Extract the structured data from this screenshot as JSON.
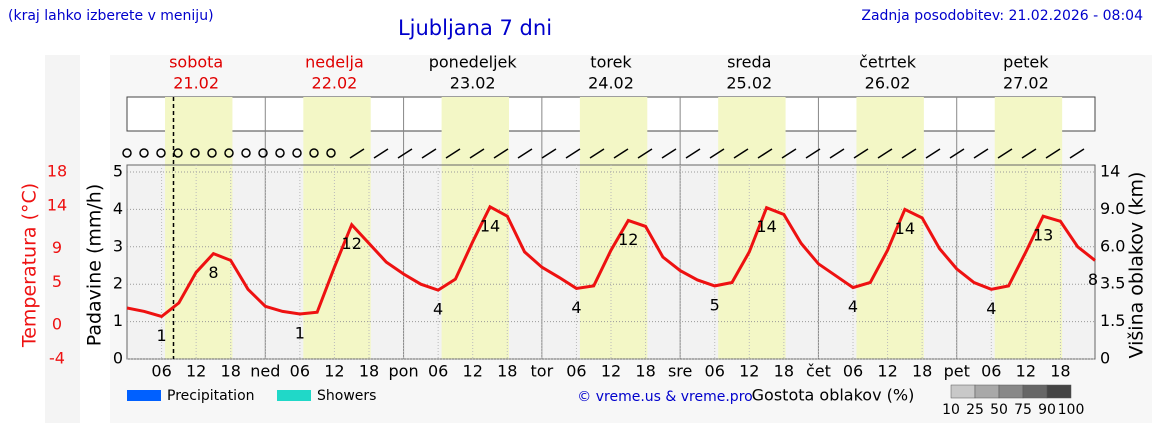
{
  "header": {
    "left": "(kraj lahko izberete v meniju)",
    "title": "Ljubljana 7 dni",
    "right": "Zadnja posodobitev: 21.02.2026 - 08:04"
  },
  "chart_data": {
    "type": "line",
    "days": [
      {
        "name": "sobota",
        "date": "21.02",
        "color": "#e00000"
      },
      {
        "name": "nedelja",
        "date": "22.02",
        "color": "#e00000"
      },
      {
        "name": "ponedeljek",
        "date": "23.02",
        "color": "#000000"
      },
      {
        "name": "torek",
        "date": "24.02",
        "color": "#000000"
      },
      {
        "name": "sreda",
        "date": "25.02",
        "color": "#000000"
      },
      {
        "name": "četrtek",
        "date": "26.02",
        "color": "#000000"
      },
      {
        "name": "petek",
        "date": "27.02",
        "color": "#000000"
      }
    ],
    "xlim": [
      0,
      168
    ],
    "xticks": [
      {
        "value": 6,
        "label": "06"
      },
      12,
      18,
      {
        "value": 24,
        "label": "ned"
      },
      {
        "value": 30,
        "label": "06"
      },
      {
        "value": 36,
        "label": "12"
      },
      {
        "value": 42,
        "label": "18"
      },
      {
        "value": 48,
        "label": "pon"
      },
      {
        "value": 54,
        "label": "06"
      },
      {
        "value": 60,
        "label": "12"
      },
      {
        "value": 66,
        "label": "18"
      },
      {
        "value": 72,
        "label": "tor"
      },
      {
        "value": 78,
        "label": "06"
      },
      {
        "value": 84,
        "label": "12"
      },
      {
        "value": 90,
        "label": "18"
      },
      {
        "value": 96,
        "label": "sre"
      },
      {
        "value": 102,
        "label": "06"
      },
      {
        "value": 108,
        "label": "12"
      },
      {
        "value": 114,
        "label": "18"
      },
      {
        "value": 120,
        "label": "čet"
      },
      {
        "value": 126,
        "label": "06"
      },
      {
        "value": 132,
        "label": "12"
      },
      {
        "value": 138,
        "label": "18"
      },
      {
        "value": 144,
        "label": "pet"
      },
      {
        "value": 150,
        "label": "06"
      },
      {
        "value": 156,
        "label": "12"
      },
      {
        "value": 162,
        "label": "18"
      }
    ],
    "daylight": [
      6.6,
      18.3
    ],
    "now": 8.07,
    "ylabel": "Padavine (mm/h)",
    "ylim": [
      0,
      5
    ],
    "yticks": [
      0,
      1,
      2,
      3,
      4,
      5
    ],
    "grid": true,
    "temperature_label": "Temperatura (°C)",
    "tlim": [
      -4,
      18
    ],
    "tticks": [
      -4,
      0,
      5,
      9,
      14,
      18
    ],
    "y2label": "Višina oblakov (km)",
    "y2ticks": [
      0,
      1.5,
      3.5,
      {
        "value": 6,
        "label": "6.0"
      },
      {
        "value": 9,
        "label": "9.0"
      },
      14
    ],
    "series": [
      {
        "name": "Temperatura",
        "color": "#ee1111",
        "x": [
          0,
          3,
          6,
          9,
          12,
          15,
          18,
          21,
          24,
          27,
          30,
          33,
          36,
          39,
          42,
          45,
          48,
          51,
          54,
          57,
          60,
          63,
          66,
          69,
          72,
          75,
          78,
          81,
          84,
          87,
          90,
          93,
          96,
          99,
          102,
          105,
          108,
          111,
          114,
          117,
          120,
          123,
          126,
          129,
          132,
          135,
          138,
          141,
          144,
          147,
          150,
          153,
          156,
          159,
          162,
          165,
          168
        ],
        "values": [
          2.0,
          1.6,
          1.0,
          2.6,
          6.2,
          8.4,
          7.6,
          4.2,
          2.2,
          1.6,
          1.3,
          1.5,
          6.8,
          11.8,
          9.6,
          7.4,
          6.0,
          4.8,
          4.1,
          5.4,
          9.8,
          13.9,
          12.8,
          8.6,
          6.8,
          5.6,
          4.3,
          4.6,
          8.8,
          12.3,
          11.6,
          8.0,
          6.4,
          5.3,
          4.6,
          5.0,
          8.6,
          13.8,
          13.0,
          9.6,
          7.2,
          5.8,
          4.4,
          5.0,
          8.8,
          13.6,
          12.6,
          9.0,
          6.6,
          5.0,
          4.2,
          4.6,
          8.6,
          12.8,
          12.2,
          9.2,
          7.6
        ],
        "value_labels": [
          null,
          null,
          "1",
          null,
          null,
          "8",
          null,
          null,
          null,
          null,
          "1",
          null,
          null,
          "12",
          null,
          null,
          null,
          null,
          "4",
          null,
          null,
          "14",
          null,
          null,
          null,
          null,
          "4",
          null,
          null,
          "12",
          null,
          null,
          null,
          null,
          "5",
          null,
          null,
          "14",
          null,
          null,
          null,
          null,
          "4",
          null,
          null,
          "14",
          null,
          null,
          null,
          null,
          "4",
          null,
          null,
          "13",
          null,
          null,
          "8"
        ]
      }
    ],
    "legend": [
      {
        "name": "Precipitation",
        "color": "#0060ff"
      },
      {
        "name": "Showers",
        "color": "#20d8c8"
      }
    ],
    "credit": "© vreme.us & vreme.pro",
    "density_title": "Gostota oblakov (%)",
    "density_levels": [
      10,
      25,
      50,
      75,
      90,
      100
    ]
  }
}
